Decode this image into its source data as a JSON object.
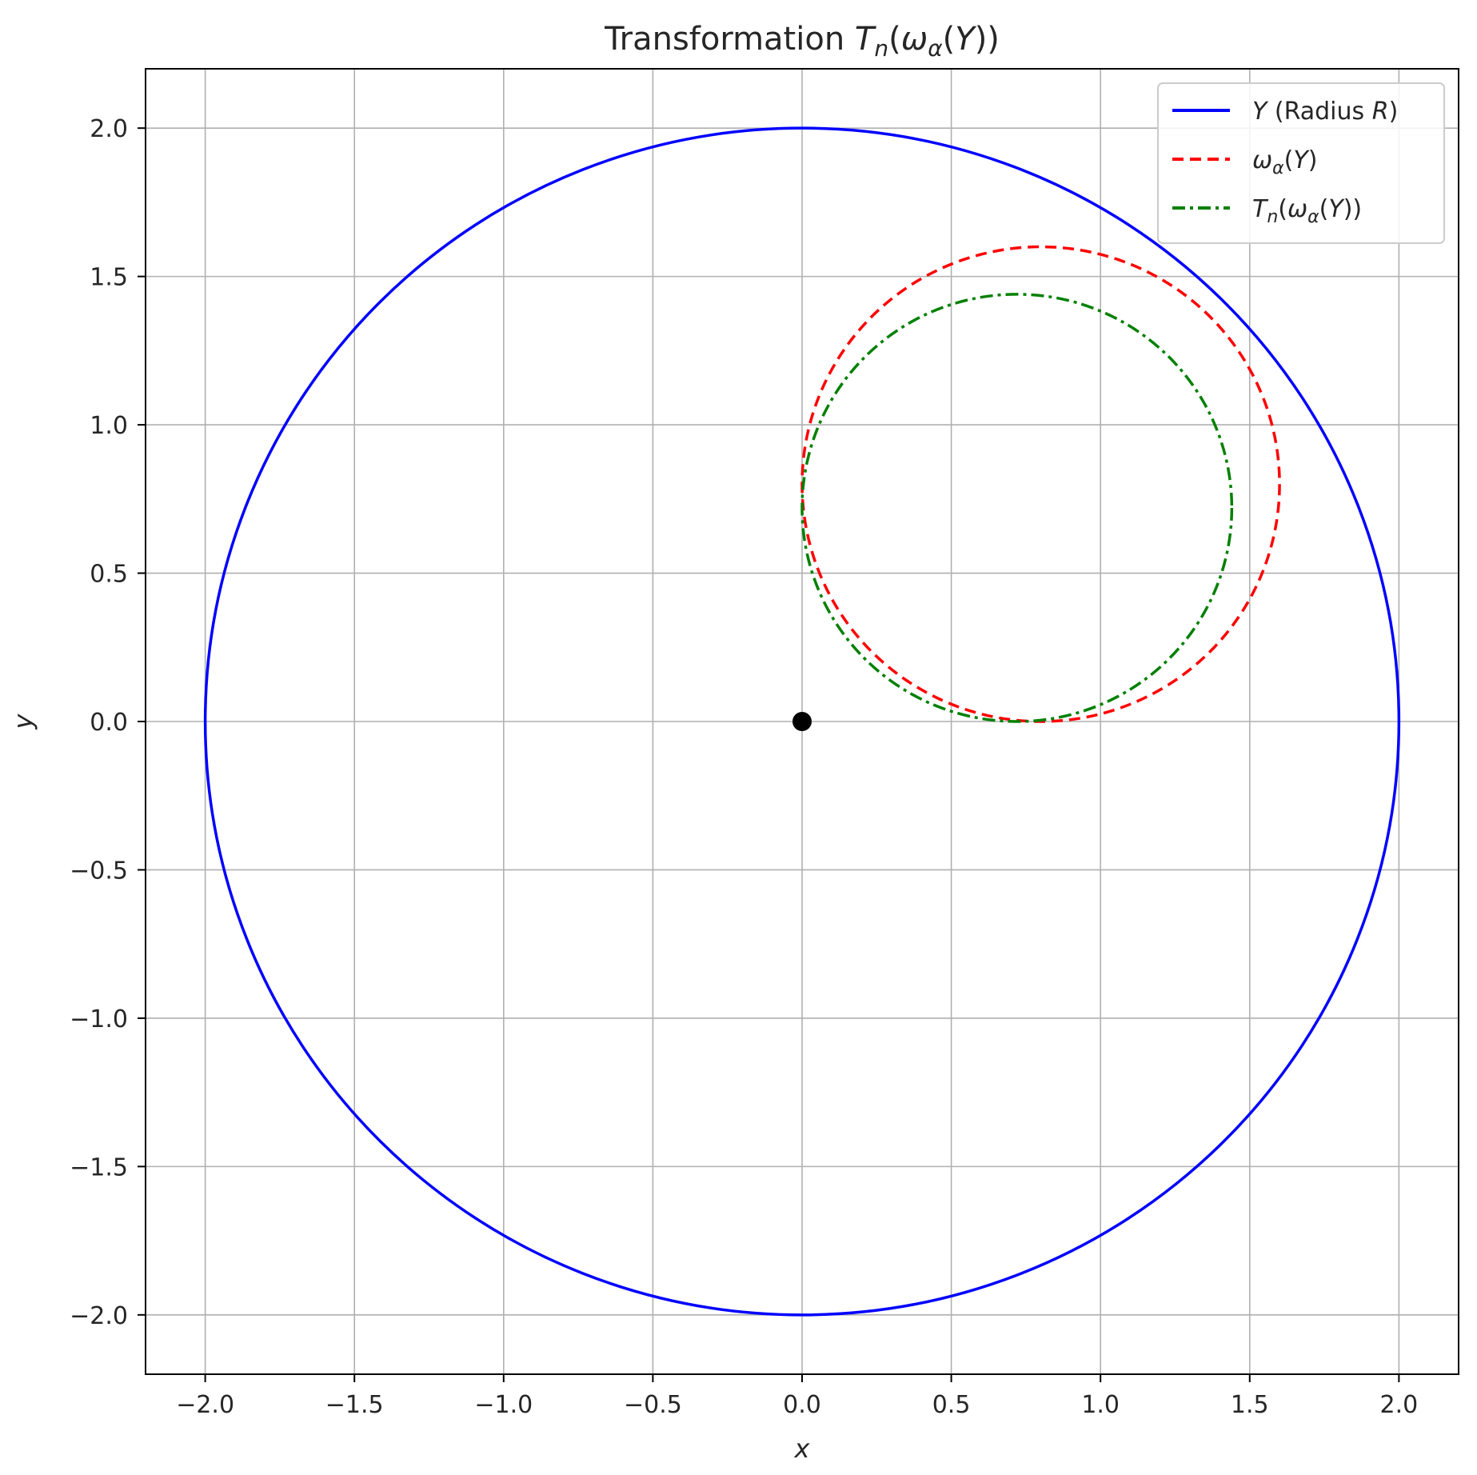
{
  "chart_data": {
    "type": "line",
    "title": "Transformation T_n(ω_α(Y))",
    "title_parts": {
      "prefix": "Transformation ",
      "t": "T",
      "n": "n",
      "open": "(",
      "omega": "ω",
      "alpha": "α",
      "inner": "(",
      "y": "Y",
      "close": "))"
    },
    "xlabel": "x",
    "ylabel": "y",
    "xlim": [
      -2.2,
      2.2
    ],
    "ylim": [
      -2.2,
      2.2
    ],
    "xticks": [
      -2.0,
      -1.5,
      -1.0,
      -0.5,
      0.0,
      0.5,
      1.0,
      1.5,
      2.0
    ],
    "yticks": [
      -2.0,
      -1.5,
      -1.0,
      -0.5,
      0.0,
      0.5,
      1.0,
      1.5,
      2.0
    ],
    "xtick_labels": [
      "−2.0",
      "−1.5",
      "−1.0",
      "−0.5",
      "0.0",
      "0.5",
      "1.0",
      "1.5",
      "2.0"
    ],
    "ytick_labels": [
      "−2.0",
      "−1.5",
      "−1.0",
      "−0.5",
      "0.0",
      "0.5",
      "1.0",
      "1.5",
      "2.0"
    ],
    "grid": true,
    "legend_position": "top-right",
    "series": [
      {
        "name": "Y (Radius R)",
        "shape": "circle",
        "center": [
          0.0,
          0.0
        ],
        "radius": 2.0,
        "color": "#0000ff",
        "style": "solid"
      },
      {
        "name": "ω_α(Y)",
        "shape": "circle",
        "center": [
          0.8,
          0.8
        ],
        "radius": 0.8,
        "color": "#ff0000",
        "style": "dashed"
      },
      {
        "name": "T_n(ω_α(Y))",
        "shape": "circle",
        "center": [
          0.72,
          0.72
        ],
        "radius": 0.72,
        "color": "#008000",
        "style": "dashdot"
      }
    ],
    "points": [
      {
        "x": 0.0,
        "y": 0.0,
        "color": "#000000"
      }
    ],
    "legend": {
      "entry1": {
        "y": "Y",
        "mid": " (Radius ",
        "r": "R",
        "end": ")"
      },
      "entry2": {
        "omega": "ω",
        "alpha": "α",
        "open": "(",
        "y": "Y",
        "close": ")"
      },
      "entry3": {
        "t": "T",
        "n": "n",
        "open": "(",
        "omega": "ω",
        "alpha": "α",
        "inner": "(",
        "y": "Y",
        "close": "))"
      }
    }
  }
}
